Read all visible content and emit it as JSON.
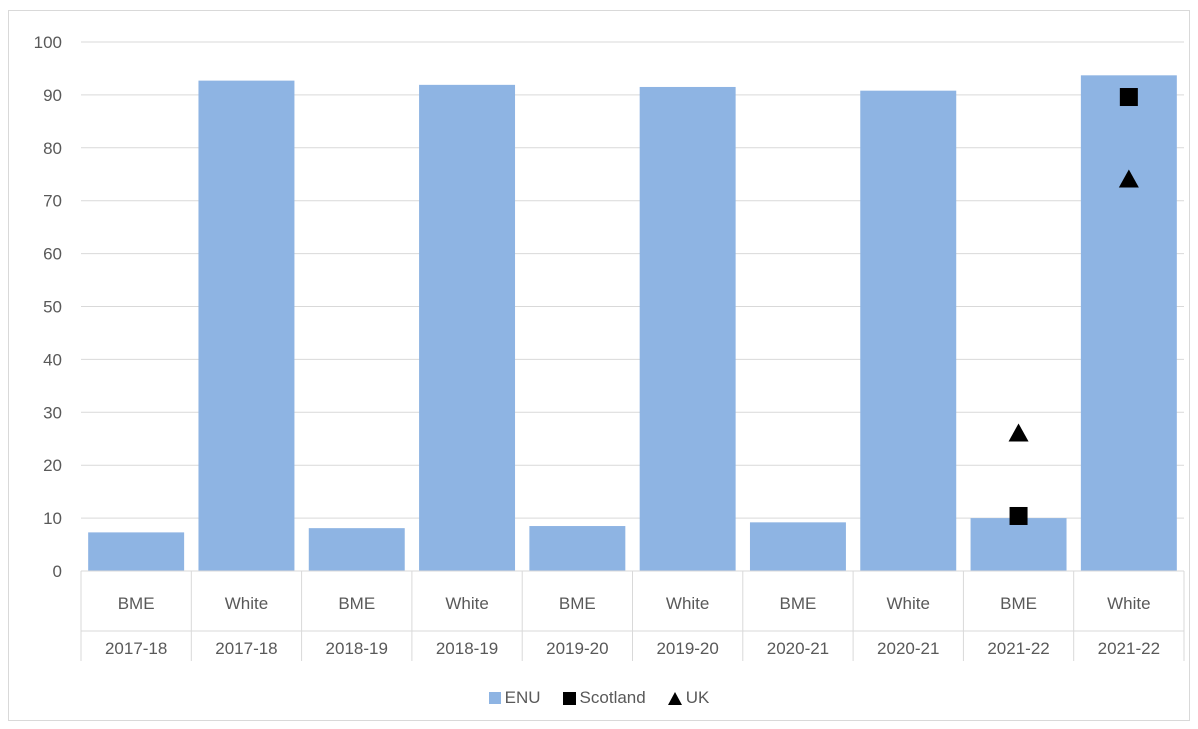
{
  "chart_data": {
    "type": "bar",
    "title": "",
    "xlabel": "",
    "ylabel": "",
    "ylim": [
      0,
      100
    ],
    "yticks": [
      0,
      10,
      20,
      30,
      40,
      50,
      60,
      70,
      80,
      90,
      100
    ],
    "grid": true,
    "legend_position": "bottom",
    "categories": [
      {
        "group": "BME",
        "year": "2017-18"
      },
      {
        "group": "White",
        "year": "2017-18"
      },
      {
        "group": "BME",
        "year": "2018-19"
      },
      {
        "group": "White",
        "year": "2018-19"
      },
      {
        "group": "BME",
        "year": "2019-20"
      },
      {
        "group": "White",
        "year": "2019-20"
      },
      {
        "group": "BME",
        "year": "2020-21"
      },
      {
        "group": "White",
        "year": "2020-21"
      },
      {
        "group": "BME",
        "year": "2021-22"
      },
      {
        "group": "White",
        "year": "2021-22"
      }
    ],
    "series": [
      {
        "name": "ENU",
        "kind": "bar",
        "color": "#8eb4e3",
        "values": [
          7.3,
          92.7,
          8.1,
          91.9,
          8.5,
          91.5,
          9.2,
          90.8,
          10.0,
          93.7
        ]
      },
      {
        "name": "Scotland",
        "kind": "marker",
        "marker": "square",
        "color": "#000000",
        "values": [
          null,
          null,
          null,
          null,
          null,
          null,
          null,
          null,
          10.4,
          89.6
        ]
      },
      {
        "name": "UK",
        "kind": "marker",
        "marker": "triangle",
        "color": "#000000",
        "values": [
          null,
          null,
          null,
          null,
          null,
          null,
          null,
          null,
          26.0,
          74.0
        ]
      }
    ]
  }
}
